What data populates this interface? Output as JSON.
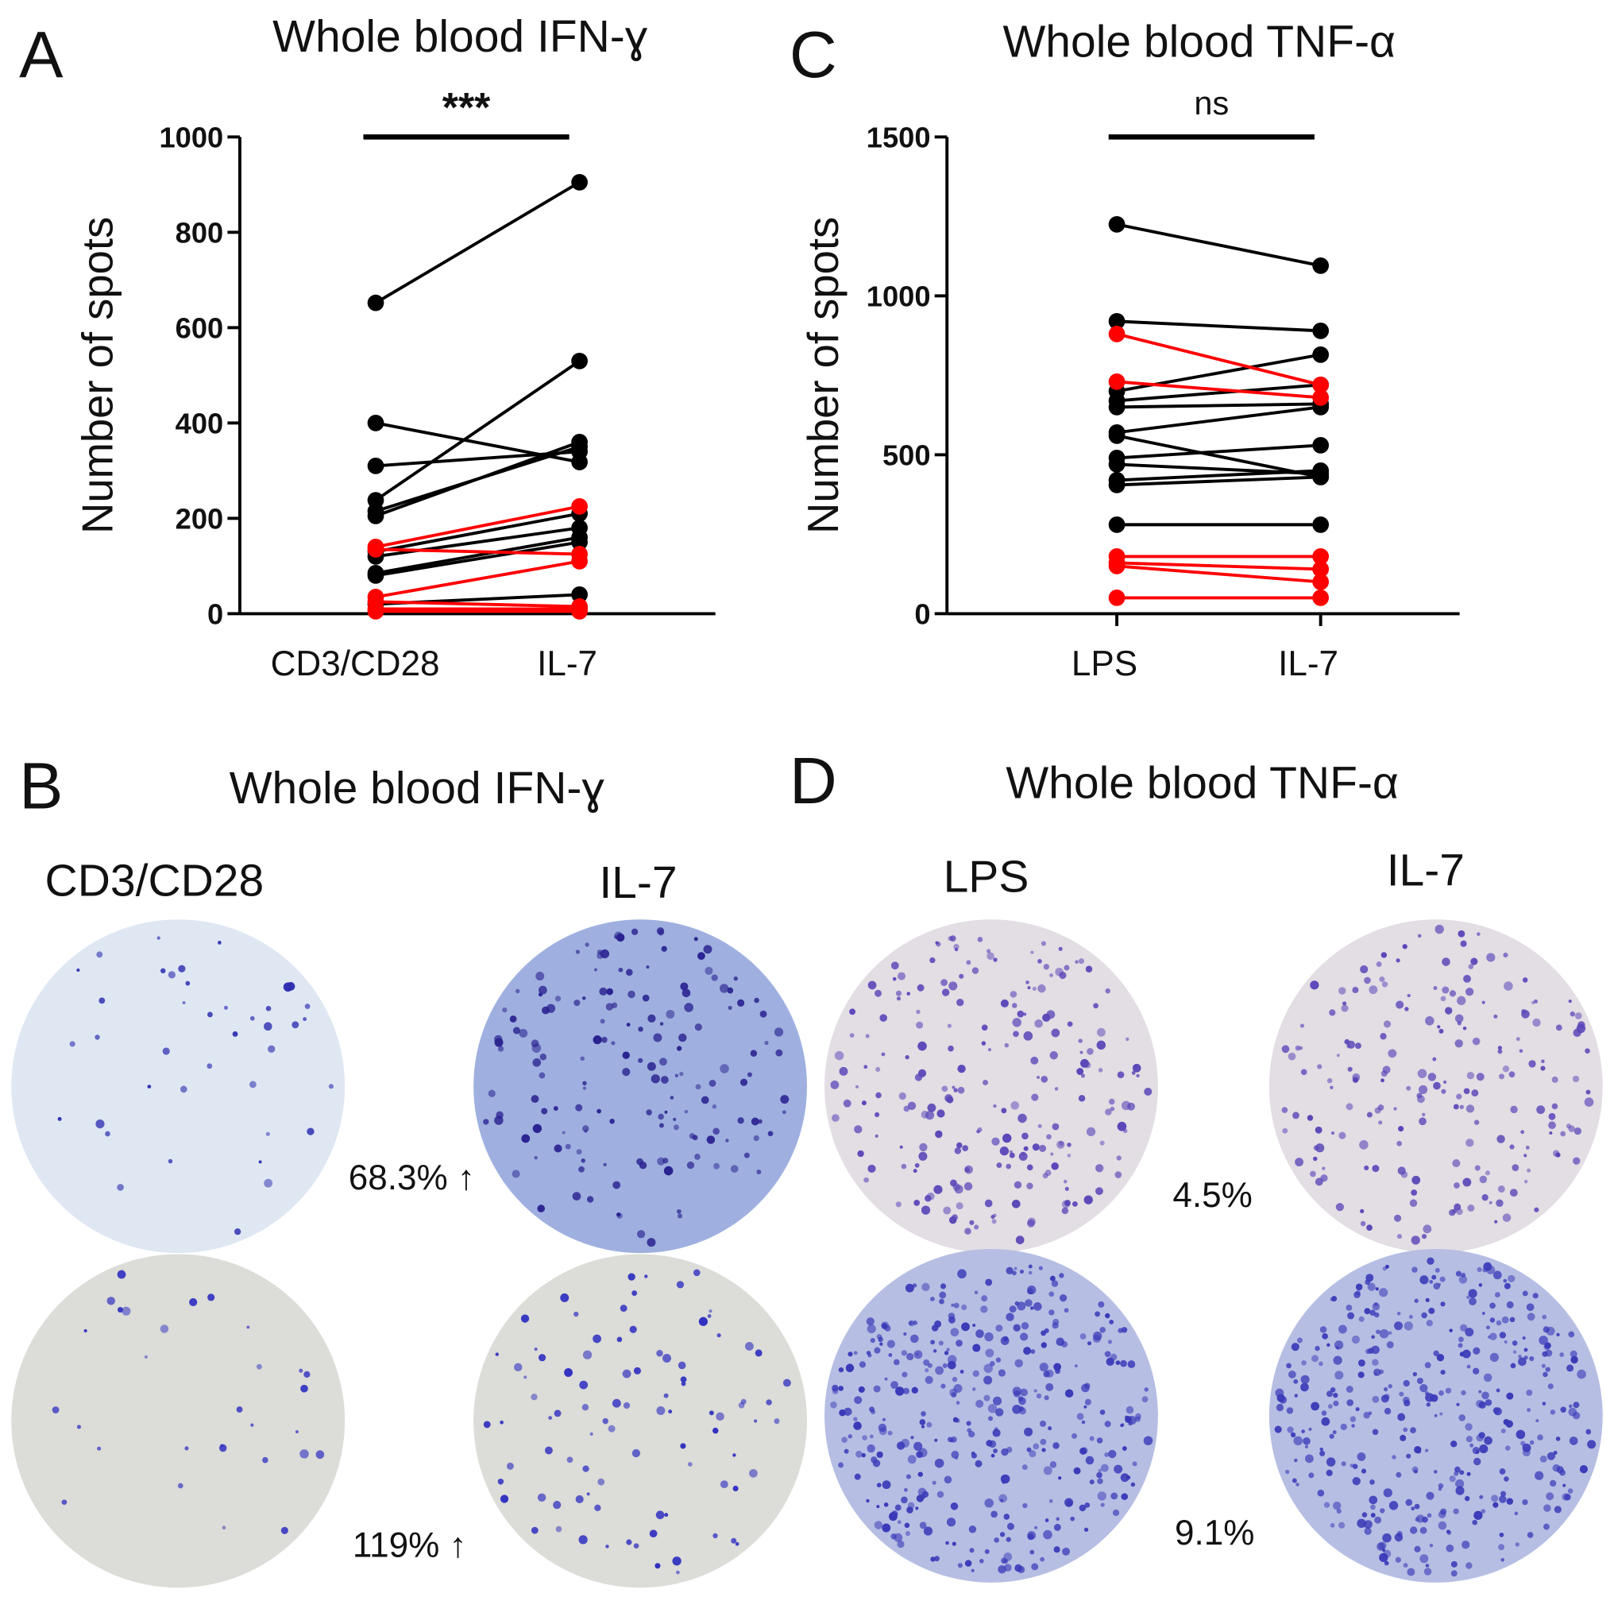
{
  "chart_data": [
    {
      "type": "line",
      "panel": "A",
      "title": "Whole blood IFN-ɣ",
      "ylabel": "Number of spots",
      "annotation": "***",
      "categories": [
        "CD3/CD28",
        "IL-7"
      ],
      "ylim": [
        0,
        1000
      ],
      "yticks": [
        0,
        200,
        400,
        600,
        800,
        1000
      ],
      "series": [
        {
          "color": "#000000",
          "values": [
            652,
            905
          ]
        },
        {
          "color": "#000000",
          "values": [
            400,
            318
          ]
        },
        {
          "color": "#000000",
          "values": [
            310,
            340
          ]
        },
        {
          "color": "#000000",
          "values": [
            238,
            530
          ]
        },
        {
          "color": "#000000",
          "values": [
            215,
            350
          ]
        },
        {
          "color": "#000000",
          "values": [
            205,
            360
          ]
        },
        {
          "color": "#000000",
          "values": [
            130,
            210
          ]
        },
        {
          "color": "#000000",
          "values": [
            120,
            180
          ]
        },
        {
          "color": "#000000",
          "values": [
            85,
            160
          ]
        },
        {
          "color": "#000000",
          "values": [
            80,
            150
          ]
        },
        {
          "color": "#000000",
          "values": [
            20,
            40
          ]
        },
        {
          "color": "#ff0000",
          "values": [
            140,
            225
          ]
        },
        {
          "color": "#ff0000",
          "values": [
            135,
            125
          ]
        },
        {
          "color": "#ff0000",
          "values": [
            35,
            110
          ]
        },
        {
          "color": "#ff0000",
          "values": [
            25,
            15
          ]
        },
        {
          "color": "#ff0000",
          "values": [
            10,
            10
          ]
        },
        {
          "color": "#ff0000",
          "values": [
            5,
            5
          ]
        }
      ]
    },
    {
      "type": "line",
      "panel": "C",
      "title": "Whole blood TNF-α",
      "ylabel": "Number of spots",
      "annotation": "ns",
      "categories": [
        "LPS",
        "IL-7"
      ],
      "ylim": [
        0,
        1500
      ],
      "yticks": [
        0,
        500,
        1000,
        1500
      ],
      "series": [
        {
          "color": "#000000",
          "values": [
            1225,
            1095
          ]
        },
        {
          "color": "#000000",
          "values": [
            920,
            890
          ]
        },
        {
          "color": "#000000",
          "values": [
            700,
            815
          ]
        },
        {
          "color": "#000000",
          "values": [
            670,
            720
          ]
        },
        {
          "color": "#000000",
          "values": [
            650,
            660
          ]
        },
        {
          "color": "#000000",
          "values": [
            570,
            650
          ]
        },
        {
          "color": "#000000",
          "values": [
            560,
            430
          ]
        },
        {
          "color": "#000000",
          "values": [
            490,
            530
          ]
        },
        {
          "color": "#000000",
          "values": [
            470,
            440
          ]
        },
        {
          "color": "#000000",
          "values": [
            420,
            450
          ]
        },
        {
          "color": "#000000",
          "values": [
            405,
            430
          ]
        },
        {
          "color": "#000000",
          "values": [
            280,
            280
          ]
        },
        {
          "color": "#ff0000",
          "values": [
            880,
            720
          ]
        },
        {
          "color": "#ff0000",
          "values": [
            730,
            680
          ]
        },
        {
          "color": "#ff0000",
          "values": [
            180,
            180
          ]
        },
        {
          "color": "#ff0000",
          "values": [
            160,
            140
          ]
        },
        {
          "color": "#ff0000",
          "values": [
            150,
            100
          ]
        },
        {
          "color": "#ff0000",
          "values": [
            50,
            50
          ]
        }
      ]
    }
  ],
  "panels": [
    {
      "letter": "B",
      "title": "Whole blood IFN-ɣ",
      "labels": [
        "CD3/CD28",
        "IL-7"
      ],
      "changes": [
        "68.3% ↑",
        "119% ↑"
      ]
    },
    {
      "letter": "D",
      "title": "Whole blood TNF-α",
      "labels": [
        "LPS",
        "IL-7"
      ],
      "changes": [
        "4.5%",
        "9.1%"
      ]
    }
  ]
}
